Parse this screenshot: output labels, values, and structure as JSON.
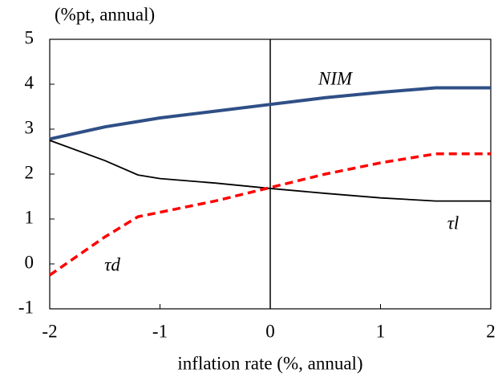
{
  "chart_data": {
    "type": "line",
    "y_label": "(%pt, annual)",
    "x_label": "inflation rate (%, annual)",
    "x": [
      -2,
      -1.5,
      -1.2,
      -1,
      -0.5,
      0,
      0.5,
      1,
      1.5,
      2
    ],
    "series": [
      {
        "name": "NIM",
        "color": "#2f4f86",
        "values": [
          2.78,
          3.05,
          3.17,
          3.25,
          3.4,
          3.55,
          3.7,
          3.82,
          3.92,
          3.92
        ]
      },
      {
        "name": "τl",
        "color": "#000000",
        "values": [
          2.75,
          2.3,
          1.98,
          1.9,
          1.8,
          1.68,
          1.57,
          1.47,
          1.4,
          1.4
        ]
      },
      {
        "name": "τd",
        "color": "#ff0000",
        "values": [
          -0.25,
          0.6,
          1.05,
          1.15,
          1.4,
          1.7,
          2.0,
          2.25,
          2.45,
          2.45
        ]
      }
    ],
    "xlim": [
      -2,
      2
    ],
    "xticks": [
      -2,
      -1,
      0,
      1,
      2
    ],
    "ylim": [
      -1,
      5
    ],
    "yticks": [
      -1,
      0,
      1,
      2,
      3,
      4,
      5
    ],
    "grid": false
  }
}
